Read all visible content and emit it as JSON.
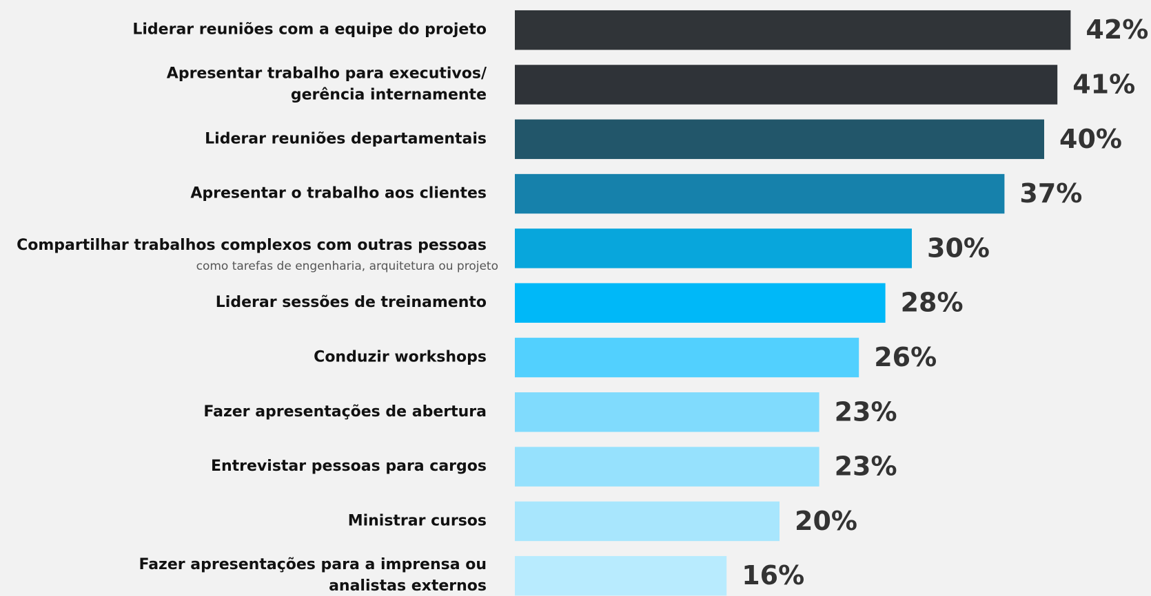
{
  "chart_data": {
    "type": "bar",
    "orientation": "horizontal",
    "categories": [
      [
        "Liderar reuniões com a equipe do projeto"
      ],
      [
        "Apresentar trabalho para executivos/",
        "gerência internamente"
      ],
      [
        "Liderar reuniões departamentais"
      ],
      [
        "Apresentar o trabalho aos clientes"
      ],
      [
        "Compartilhar trabalhos complexos com outras pessoas"
      ],
      [
        "Liderar sessões de treinamento"
      ],
      [
        "Conduzir workshops"
      ],
      [
        "Fazer apresentações de abertura"
      ],
      [
        "Entrevistar pessoas para cargos"
      ],
      [
        "Ministrar cursos"
      ],
      [
        "Fazer apresentações para a imprensa ou",
        "analistas externos"
      ]
    ],
    "annotation": "como tarefas de engenharia, arquitetura ou projeto",
    "values": [
      42,
      41,
      40,
      37,
      30,
      28,
      26,
      23,
      23,
      20,
      16
    ],
    "value_labels": [
      "42%",
      "41%",
      "40%",
      "37%",
      "30%",
      "28%",
      "26%",
      "23%",
      "23%",
      "20%",
      "16%"
    ],
    "colors": [
      "#303438",
      "#2f3338",
      "#22566a",
      "#1681ab",
      "#08a6dc",
      "#00b8f8",
      "#52d0fe",
      "#80dbfd",
      "#96e1fd",
      "#a8e6fd",
      "#b8ebfe"
    ]
  }
}
